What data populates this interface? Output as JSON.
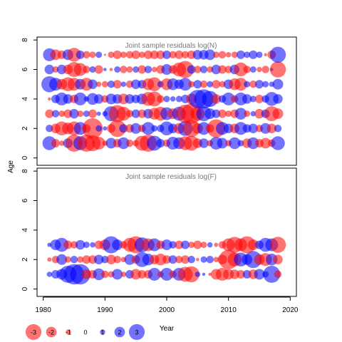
{
  "figure": {
    "ylabel": "Age",
    "xlabel": "Year",
    "legend_values": [
      "-3",
      "-2",
      "-1",
      "0",
      "1",
      "2",
      "3"
    ]
  },
  "colors": {
    "positive": "#0000ff",
    "negative": "#ff0000",
    "alpha": 0.55
  },
  "chart_data": [
    {
      "type": "scatter",
      "subtype": "bubble",
      "title": "Joint sample residuals log(N)",
      "xlabel": "Year",
      "ylabel": "Age",
      "xlim": [
        1979,
        2021
      ],
      "ylim": [
        -0.5,
        8.2
      ],
      "yticks": [
        "0",
        "2",
        "4",
        "6",
        "8"
      ],
      "grid": false,
      "bubble_size": "abs(residual), sign by color (blue=positive, red=negative)",
      "years": [
        1981,
        1982,
        1983,
        1984,
        1985,
        1986,
        1987,
        1988,
        1989,
        1990,
        1991,
        1992,
        1993,
        1994,
        1995,
        1996,
        1997,
        1998,
        1999,
        2000,
        2001,
        2002,
        2003,
        2004,
        2005,
        2006,
        2007,
        2008,
        2009,
        2010,
        2011,
        2012,
        2013,
        2014,
        2015,
        2016,
        2017,
        2018
      ],
      "rows": [
        {
          "age": 1,
          "residuals": [
            1.3,
            -0.8,
            -0.5,
            0.9,
            -1.6,
            1.3,
            -1.6,
            -1.5,
            -1.2,
            -0.5,
            1.0,
            -0.8,
            1.1,
            -0.7,
            -0.6,
            -1.4,
            -1.6,
            1.4,
            0.8,
            -0.7,
            1.2,
            1.1,
            -1.3,
            -1.4,
            -0.9,
            0.9,
            -0.6,
            1.2,
            1.0,
            -0.6,
            1.1,
            0.6,
            -0.9,
            1.1,
            -0.8,
            -1.0,
            -0.7,
            1.3
          ]
        },
        {
          "age": 2,
          "residuals": [
            0.7,
            -0.9,
            -1.3,
            -1.1,
            -1.3,
            1.2,
            -0.8,
            -1.9,
            0.6,
            0.4,
            -0.8,
            -1.6,
            0.8,
            -0.8,
            1.0,
            -0.7,
            1.2,
            0.6,
            0.7,
            1.3,
            0.9,
            -1.0,
            1.4,
            -1.6,
            -1.0,
            1.2,
            -0.8,
            -1.7,
            1.2,
            0.9,
            -0.9,
            1.2,
            0.8,
            0.9,
            -0.7,
            1.0,
            -0.9,
            0.7
          ]
        },
        {
          "age": 3,
          "residuals": [
            -0.8,
            0.7,
            -0.6,
            -0.8,
            0.9,
            -0.6,
            0.6,
            -0.8,
            0.4,
            0.5,
            1.4,
            -1.6,
            -1.3,
            -0.7,
            0.8,
            -0.8,
            0.9,
            -1.1,
            -1.3,
            1.2,
            -1.0,
            1.3,
            -1.7,
            -1.9,
            -1.3,
            1.4,
            1.0,
            0.8,
            -0.8,
            -0.6,
            -0.8,
            1.1,
            -0.6,
            0.5,
            -0.9,
            0.8,
            -1.4,
            -1.0
          ]
        },
        {
          "age": 4,
          "residuals": [
            -0.3,
            0.8,
            1.2,
            0.9,
            -0.8,
            1.2,
            0.5,
            1.1,
            0.9,
            -0.7,
            1.0,
            0.9,
            -1.0,
            0.9,
            0.8,
            1.0,
            -1.3,
            -1.4,
            -0.7,
            0.6,
            0.5,
            0.6,
            0.8,
            -1.0,
            1.7,
            1.8,
            1.5,
            -0.9,
            0.7,
            1.2,
            -0.7,
            1.2,
            0.9,
            0.6,
            -0.8,
            0.7,
            1.3,
            0.9
          ]
        },
        {
          "age": 5,
          "residuals": [
            1.5,
            1.2,
            -1.0,
            -1.3,
            -1.2,
            1.0,
            -1.2,
            0.9,
            -0.5,
            -0.6,
            0.7,
            -0.8,
            0.5,
            -0.7,
            0.9,
            0.8,
            -1.1,
            -1.3,
            0.6,
            -1.1,
            1.1,
            0.9,
            1.2,
            -0.6,
            0.8,
            -0.7,
            0.6,
            -0.8,
            -0.6,
            0.9,
            -1.1,
            -1.2,
            0.6,
            -0.7,
            0.8,
            0.6,
            0.5,
            1.0
          ]
        },
        {
          "age": 6,
          "residuals": [
            0.9,
            -0.6,
            0.9,
            -0.9,
            -1.4,
            -1.2,
            -0.7,
            0.6,
            -0.8,
            0.3,
            -0.3,
            0.6,
            -0.7,
            -0.6,
            0.6,
            -0.8,
            0.7,
            -0.5,
            -0.8,
            1.0,
            -0.8,
            -1.3,
            -1.6,
            0.8,
            -0.7,
            0.7,
            -0.6,
            0.9,
            -0.8,
            -0.7,
            0.9,
            -1.3,
            -0.7,
            0.6,
            -0.5,
            -0.7,
            0.3,
            -1.5
          ]
        },
        {
          "age": 7,
          "residuals": [
            1.2,
            -1.0,
            -0.8,
            1.0,
            -1.3,
            0.8,
            -0.7,
            -0.6,
            0.6,
            -0.2,
            -0.6,
            -0.8,
            -0.6,
            -0.7,
            -0.8,
            -0.6,
            -0.8,
            -0.8,
            -0.8,
            0.8,
            -0.7,
            -0.8,
            -0.7,
            -0.8,
            0.9,
            0.9,
            1.0,
            -0.6,
            -0.7,
            -0.5,
            -0.6,
            0.8,
            0.6,
            0.8,
            0.6,
            -0.3,
            -0.8,
            1.5
          ]
        }
      ]
    },
    {
      "type": "scatter",
      "subtype": "bubble",
      "title": "Joint sample residuals log(F)",
      "xlabel": "Year",
      "ylabel": "Age",
      "xlim": [
        1979,
        2021
      ],
      "ylim": [
        -0.5,
        8.2
      ],
      "yticks": [
        "0",
        "2",
        "4",
        "6",
        "8"
      ],
      "xticks": [
        "1980",
        "1990",
        "2000",
        "2010",
        "2020"
      ],
      "grid": false,
      "bubble_size": "abs(residual), sign by color (blue=positive, red=negative)",
      "years": [
        1981,
        1982,
        1983,
        1984,
        1985,
        1986,
        1987,
        1988,
        1989,
        1990,
        1991,
        1992,
        1993,
        1994,
        1995,
        1996,
        1997,
        1998,
        1999,
        2000,
        2001,
        2002,
        2003,
        2004,
        2005,
        2006,
        2007,
        2008,
        2009,
        2010,
        2011,
        2012,
        2013,
        2014,
        2015,
        2016,
        2017,
        2018
      ],
      "rows": [
        {
          "age": 1,
          "residuals": [
            0.5,
            0.8,
            1.0,
            1.6,
            1.9,
            1.9,
            -0.9,
            -0.8,
            1.1,
            -0.7,
            -0.6,
            1.0,
            -0.5,
            0.8,
            -1.0,
            -0.8,
            -0.8,
            1.2,
            -0.6,
            1.2,
            -0.7,
            1.2,
            -1.4,
            -1.5,
            0.5,
            0.3,
            -0.3,
            -1.0,
            -1.2,
            -1.0,
            -0.9,
            -0.8,
            0.8,
            -0.9,
            1.0,
            0.6,
            1.6,
            -0.7
          ]
        },
        {
          "age": 2,
          "residuals": [
            -0.4,
            -0.7,
            1.0,
            -0.6,
            0.7,
            -0.6,
            -0.8,
            -0.8,
            0.9,
            0.7,
            -0.9,
            -0.7,
            -0.5,
            1.0,
            -0.8,
            1.4,
            1.1,
            -0.9,
            -1.1,
            -0.8,
            0.8,
            -0.7,
            -0.8,
            0.7,
            -0.3,
            0.6,
            0.7,
            -0.5,
            -0.9,
            -1.8,
            -1.3,
            1.3,
            1.0,
            1.6,
            -1.0,
            -1.2,
            1.1,
            -0.9
          ]
        },
        {
          "age": 3,
          "residuals": [
            0.4,
            1.0,
            1.3,
            -0.8,
            -0.7,
            0.9,
            0.6,
            0.5,
            -0.8,
            -1.0,
            1.6,
            1.0,
            -0.7,
            -1.3,
            -1.6,
            1.4,
            -1.2,
            1.2,
            -0.8,
            1.0,
            0.7,
            -0.8,
            0.8,
            -0.6,
            -0.8,
            -0.6,
            0.5,
            -0.4,
            -0.7,
            -1.2,
            -1.5,
            -1.2,
            -1.6,
            -1.0,
            0.8,
            1.3,
            1.2,
            -1.5
          ]
        }
      ]
    }
  ]
}
